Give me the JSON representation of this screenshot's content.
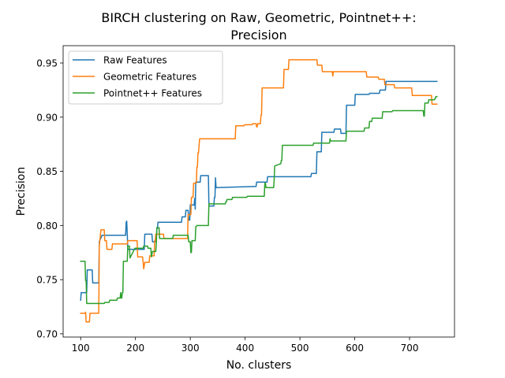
{
  "chart_data": {
    "type": "line",
    "title_line1": "BIRCH clustering on Raw, Geometric, Pointnet++:",
    "title_line2": "Precision",
    "xlabel": "No. clusters",
    "ylabel": "Precision",
    "xlim": [
      68,
      782
    ],
    "ylim": [
      0.697,
      0.966
    ],
    "xticks": [
      100,
      200,
      300,
      400,
      500,
      600,
      700
    ],
    "yticks": [
      0.7,
      0.75,
      0.8,
      0.85,
      0.9,
      0.95
    ],
    "xtick_labels": [
      "100",
      "200",
      "300",
      "400",
      "500",
      "600",
      "700"
    ],
    "ytick_labels": [
      "0.70",
      "0.75",
      "0.80",
      "0.85",
      "0.90",
      "0.95"
    ],
    "legend_position": "upper-left",
    "series": [
      {
        "name": "Raw Features",
        "color": "#1f77b4",
        "points": [
          [
            100,
            0.731
          ],
          [
            101,
            0.738
          ],
          [
            111,
            0.738
          ],
          [
            112,
            0.759
          ],
          [
            121,
            0.759
          ],
          [
            122,
            0.747
          ],
          [
            133,
            0.747
          ],
          [
            134,
            0.785
          ],
          [
            139,
            0.791
          ],
          [
            182,
            0.791
          ],
          [
            183,
            0.803
          ],
          [
            184,
            0.804
          ],
          [
            185,
            0.792
          ],
          [
            186,
            0.778
          ],
          [
            216,
            0.778
          ],
          [
            217,
            0.792
          ],
          [
            230,
            0.792
          ],
          [
            231,
            0.785
          ],
          [
            238,
            0.785
          ],
          [
            239,
            0.797
          ],
          [
            240,
            0.797
          ],
          [
            241,
            0.803
          ],
          [
            284,
            0.803
          ],
          [
            285,
            0.808
          ],
          [
            291,
            0.808
          ],
          [
            292,
            0.814
          ],
          [
            296,
            0.814
          ],
          [
            297,
            0.805
          ],
          [
            299,
            0.805
          ],
          [
            300,
            0.819
          ],
          [
            307,
            0.819
          ],
          [
            308,
            0.825
          ],
          [
            309,
            0.815
          ],
          [
            310,
            0.84
          ],
          [
            318,
            0.84
          ],
          [
            319,
            0.846
          ],
          [
            333,
            0.846
          ],
          [
            334,
            0.818
          ],
          [
            343,
            0.818
          ],
          [
            344,
            0.826
          ],
          [
            345,
            0.826
          ],
          [
            346,
            0.844
          ],
          [
            347,
            0.835
          ],
          [
            419,
            0.836
          ],
          [
            420,
            0.836
          ],
          [
            421,
            0.84
          ],
          [
            440,
            0.84
          ],
          [
            441,
            0.845
          ],
          [
            520,
            0.845
          ],
          [
            521,
            0.848
          ],
          [
            530,
            0.848
          ],
          [
            531,
            0.868
          ],
          [
            539,
            0.868
          ],
          [
            540,
            0.886
          ],
          [
            562,
            0.886
          ],
          [
            563,
            0.889
          ],
          [
            574,
            0.889
          ],
          [
            575,
            0.885
          ],
          [
            584,
            0.885
          ],
          [
            585,
            0.911
          ],
          [
            600,
            0.911
          ],
          [
            601,
            0.921
          ],
          [
            626,
            0.921
          ],
          [
            627,
            0.922
          ],
          [
            645,
            0.922
          ],
          [
            646,
            0.925
          ],
          [
            656,
            0.925
          ],
          [
            657,
            0.933
          ],
          [
            750,
            0.933
          ]
        ]
      },
      {
        "name": "Geometric Features",
        "color": "#ff7f0e",
        "points": [
          [
            100,
            0.719
          ],
          [
            108,
            0.719
          ],
          [
            109,
            0.72
          ],
          [
            110,
            0.711
          ],
          [
            116,
            0.711
          ],
          [
            117,
            0.719
          ],
          [
            133,
            0.719
          ],
          [
            134,
            0.782
          ],
          [
            135,
            0.786
          ],
          [
            137,
            0.796
          ],
          [
            143,
            0.796
          ],
          [
            144,
            0.786
          ],
          [
            147,
            0.786
          ],
          [
            148,
            0.778
          ],
          [
            157,
            0.778
          ],
          [
            158,
            0.783
          ],
          [
            185,
            0.783
          ],
          [
            186,
            0.786
          ],
          [
            203,
            0.786
          ],
          [
            204,
            0.771
          ],
          [
            213,
            0.771
          ],
          [
            214,
            0.766
          ],
          [
            215,
            0.76
          ],
          [
            217,
            0.766
          ],
          [
            225,
            0.766
          ],
          [
            226,
            0.772
          ],
          [
            234,
            0.772
          ],
          [
            235,
            0.786
          ],
          [
            236,
            0.786
          ],
          [
            237,
            0.792
          ],
          [
            251,
            0.792
          ],
          [
            252,
            0.788
          ],
          [
            295,
            0.788
          ],
          [
            296,
            0.81
          ],
          [
            301,
            0.81
          ],
          [
            302,
            0.826
          ],
          [
            305,
            0.826
          ],
          [
            306,
            0.839
          ],
          [
            311,
            0.839
          ],
          [
            312,
            0.854
          ],
          [
            313,
            0.854
          ],
          [
            314,
            0.867
          ],
          [
            315,
            0.867
          ],
          [
            316,
            0.874
          ],
          [
            317,
            0.88
          ],
          [
            382,
            0.88
          ],
          [
            383,
            0.892
          ],
          [
            398,
            0.892
          ],
          [
            399,
            0.893
          ],
          [
            413,
            0.893
          ],
          [
            414,
            0.894
          ],
          [
            420,
            0.894
          ],
          [
            421,
            0.891
          ],
          [
            422,
            0.891
          ],
          [
            423,
            0.894
          ],
          [
            428,
            0.894
          ],
          [
            429,
            0.902
          ],
          [
            430,
            0.902
          ],
          [
            431,
            0.927
          ],
          [
            470,
            0.927
          ],
          [
            471,
            0.944
          ],
          [
            479,
            0.944
          ],
          [
            480,
            0.953
          ],
          [
            531,
            0.953
          ],
          [
            532,
            0.948
          ],
          [
            540,
            0.948
          ],
          [
            541,
            0.942
          ],
          [
            559,
            0.942
          ],
          [
            560,
            0.938
          ],
          [
            561,
            0.942
          ],
          [
            621,
            0.942
          ],
          [
            622,
            0.937
          ],
          [
            643,
            0.937
          ],
          [
            644,
            0.935
          ],
          [
            654,
            0.935
          ],
          [
            655,
            0.93
          ],
          [
            672,
            0.93
          ],
          [
            673,
            0.927
          ],
          [
            704,
            0.927
          ],
          [
            705,
            0.92
          ],
          [
            740,
            0.92
          ],
          [
            741,
            0.912
          ],
          [
            750,
            0.912
          ]
        ]
      },
      {
        "name": "Pointnet++ Features",
        "color": "#2ca02c",
        "points": [
          [
            100,
            0.767
          ],
          [
            108,
            0.767
          ],
          [
            109,
            0.749
          ],
          [
            110,
            0.749
          ],
          [
            111,
            0.728
          ],
          [
            143,
            0.728
          ],
          [
            144,
            0.729
          ],
          [
            152,
            0.729
          ],
          [
            153,
            0.731
          ],
          [
            166,
            0.731
          ],
          [
            167,
            0.733
          ],
          [
            172,
            0.733
          ],
          [
            173,
            0.738
          ],
          [
            174,
            0.733
          ],
          [
            175,
            0.733
          ],
          [
            176,
            0.738
          ],
          [
            177,
            0.738
          ],
          [
            178,
            0.767
          ],
          [
            185,
            0.767
          ],
          [
            186,
            0.781
          ],
          [
            189,
            0.781
          ],
          [
            190,
            0.77
          ],
          [
            196,
            0.776
          ],
          [
            199,
            0.779
          ],
          [
            214,
            0.779
          ],
          [
            215,
            0.781
          ],
          [
            222,
            0.781
          ],
          [
            223,
            0.779
          ],
          [
            228,
            0.779
          ],
          [
            229,
            0.771
          ],
          [
            231,
            0.776
          ],
          [
            237,
            0.776
          ],
          [
            238,
            0.783
          ],
          [
            239,
            0.798
          ],
          [
            243,
            0.798
          ],
          [
            244,
            0.788
          ],
          [
            268,
            0.788
          ],
          [
            269,
            0.791
          ],
          [
            296,
            0.791
          ],
          [
            297,
            0.785
          ],
          [
            300,
            0.785
          ],
          [
            301,
            0.775
          ],
          [
            302,
            0.775
          ],
          [
            303,
            0.786
          ],
          [
            309,
            0.786
          ],
          [
            310,
            0.799
          ],
          [
            311,
            0.799
          ],
          [
            312,
            0.8
          ],
          [
            333,
            0.8
          ],
          [
            334,
            0.82
          ],
          [
            364,
            0.82
          ],
          [
            365,
            0.822
          ],
          [
            366,
            0.822
          ],
          [
            367,
            0.824
          ],
          [
            376,
            0.824
          ],
          [
            377,
            0.826
          ],
          [
            403,
            0.826
          ],
          [
            404,
            0.827
          ],
          [
            435,
            0.827
          ],
          [
            436,
            0.839
          ],
          [
            437,
            0.839
          ],
          [
            438,
            0.835
          ],
          [
            452,
            0.835
          ],
          [
            453,
            0.842
          ],
          [
            454,
            0.855
          ],
          [
            465,
            0.857
          ],
          [
            466,
            0.86
          ],
          [
            467,
            0.86
          ],
          [
            468,
            0.874
          ],
          [
            524,
            0.874
          ],
          [
            525,
            0.876
          ],
          [
            554,
            0.876
          ],
          [
            555,
            0.88
          ],
          [
            556,
            0.878
          ],
          [
            584,
            0.878
          ],
          [
            585,
            0.887
          ],
          [
            617,
            0.887
          ],
          [
            618,
            0.89
          ],
          [
            626,
            0.89
          ],
          [
            627,
            0.896
          ],
          [
            631,
            0.896
          ],
          [
            632,
            0.899
          ],
          [
            650,
            0.899
          ],
          [
            651,
            0.905
          ],
          [
            668,
            0.905
          ],
          [
            669,
            0.906
          ],
          [
            725,
            0.906
          ],
          [
            726,
            0.901
          ],
          [
            727,
            0.901
          ],
          [
            728,
            0.913
          ],
          [
            734,
            0.913
          ],
          [
            735,
            0.916
          ],
          [
            745,
            0.916
          ],
          [
            746,
            0.917
          ],
          [
            747,
            0.917
          ],
          [
            748,
            0.919
          ],
          [
            750,
            0.919
          ]
        ]
      }
    ]
  }
}
